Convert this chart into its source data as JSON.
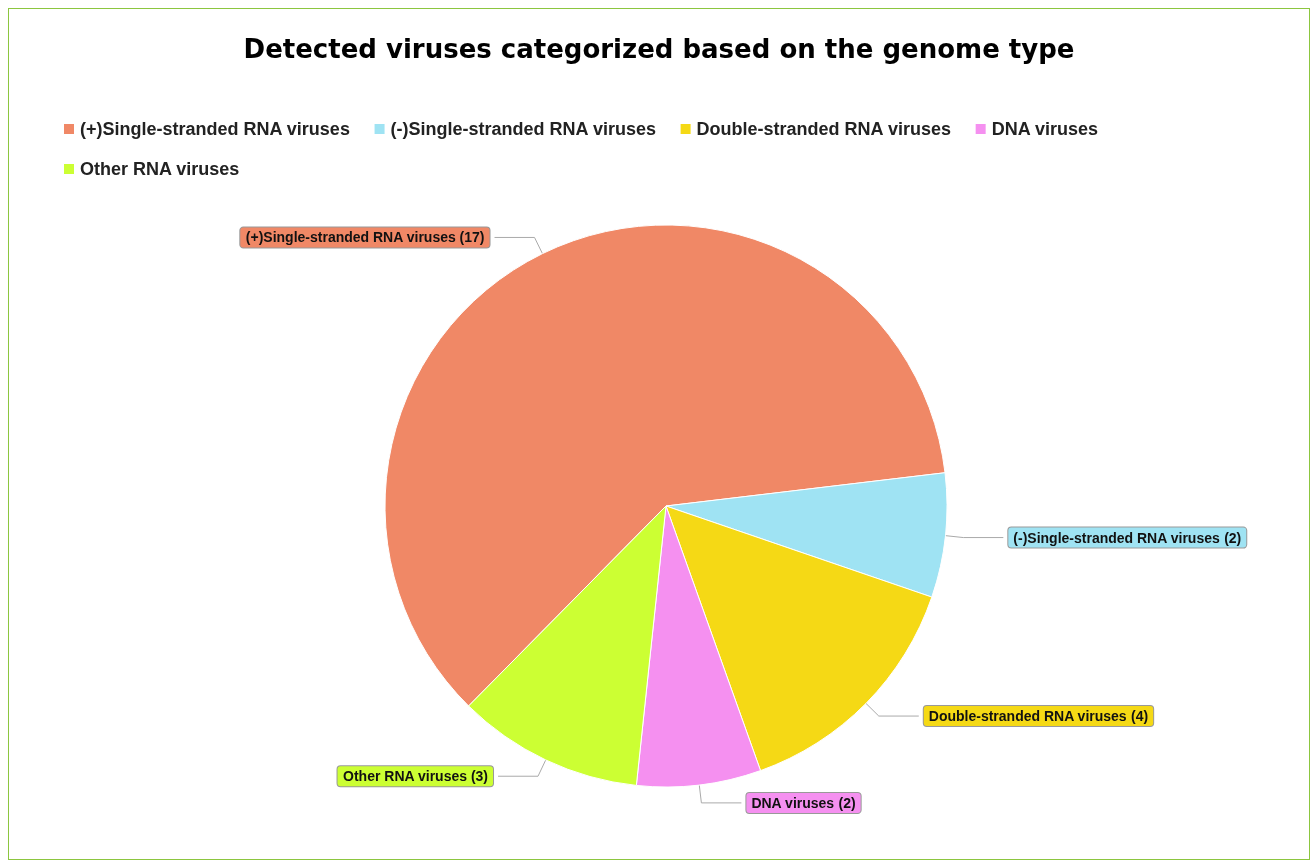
{
  "chart_data": {
    "type": "pie",
    "title": "Detected viruses categorized based on the genome type",
    "categories": [
      "(+)Single-stranded RNA viruses",
      "(-)Single-stranded RNA viruses",
      "Double-stranded RNA viruses",
      "DNA viruses",
      "Other RNA viruses"
    ],
    "values": [
      17,
      2,
      4,
      2,
      3
    ],
    "colors": [
      "#f08866",
      "#9fe3f3",
      "#f5d915",
      "#f590f0",
      "#ccff33"
    ],
    "value_labels": [
      "(17)",
      "(2)",
      "(4)",
      "(2)",
      "(3)"
    ],
    "legend": "top left"
  }
}
